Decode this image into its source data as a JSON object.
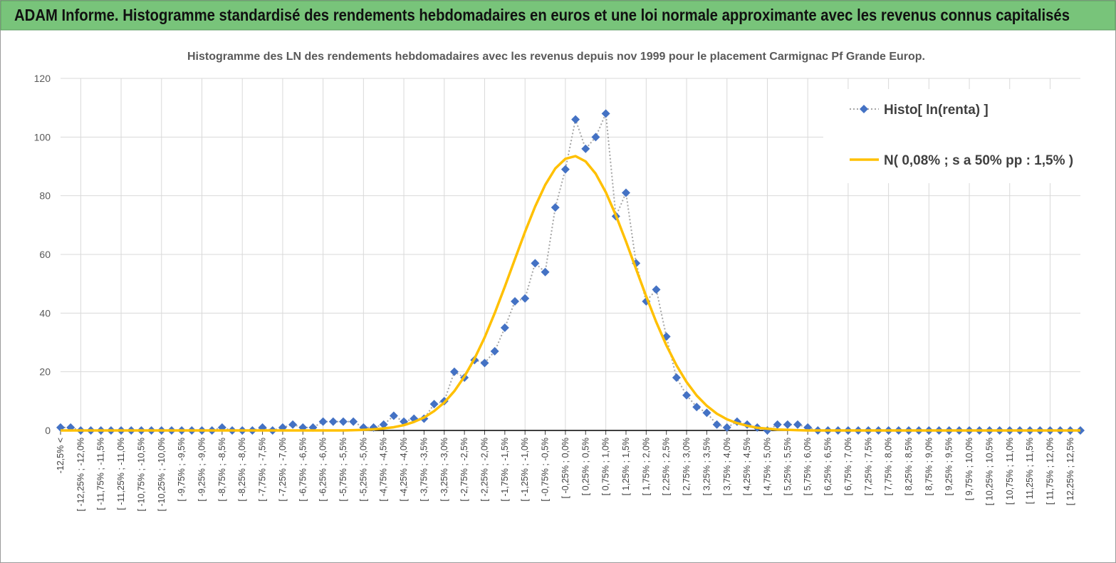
{
  "header": {
    "title": "ADAM Informe. Histogramme standardisé des rendements hebdomadaires en euros et une loi normale approximante avec les revenus connus capitalisés"
  },
  "chart_data": {
    "type": "line",
    "title": "Histogramme des LN des rendements hebdomadaires avec les revenus depuis nov 1999 pour le placement Carmignac Pf Grande Europ.",
    "categories": [
      "-12,5% <",
      null,
      "[ -12,25% ; -12,0%",
      null,
      "[ -11,75% ; -11,5%",
      null,
      "[ -11,25% ; -11,0%",
      null,
      "[ -10,75% ; -10,5%",
      null,
      "[ -10,25% ; -10,0%",
      null,
      "[ -9,75% ; -9,5%",
      null,
      "[ -9,25% ; -9,0%",
      null,
      "[ -8,75% ; -8,5%",
      null,
      "[ -8,25% ; -8,0%",
      null,
      "[ -7,75% ; -7,5%",
      null,
      "[ -7,25% ; -7,0%",
      null,
      "[ -6,75% ; -6,5%",
      null,
      "[ -6,25% ; -6,0%",
      null,
      "[ -5,75% ; -5,5%",
      null,
      "[ -5,25% ; -5,0%",
      null,
      "[ -4,75% ; -4,5%",
      null,
      "[ -4,25% ; -4,0%",
      null,
      "[ -3,75% ; -3,5%",
      null,
      "[ -3,25% ; -3,0%",
      null,
      "[ -2,75% ; -2,5%",
      null,
      "[ -2,25% ; -2,0%",
      null,
      "[ -1,75% ; -1,5%",
      null,
      "[ -1,25% ; -1,0%",
      null,
      "[ -0,75% ; -0,5%",
      null,
      "[ -0,25% ; 0,0%",
      null,
      "[ 0,25% ; 0,5%",
      null,
      "[ 0,75% ; 1,0%",
      null,
      "[ 1,25% ; 1,5%",
      null,
      "[ 1,75% ; 2,0%",
      null,
      "[ 2,25% ; 2,5%",
      null,
      "[ 2,75% ; 3,0%",
      null,
      "[ 3,25% ; 3,5%",
      null,
      "[ 3,75% ; 4,0%",
      null,
      "[ 4,25% ; 4,5%",
      null,
      "[ 4,75% ; 5,0%",
      null,
      "[ 5,25% ; 5,5%",
      null,
      "[ 5,75% ; 6,0%",
      null,
      "[ 6,25% ; 6,5%",
      null,
      "[ 6,75% ; 7,0%",
      null,
      "[ 7,25% ; 7,5%",
      null,
      "[ 7,75% ; 8,0%",
      null,
      "[ 8,25% ; 8,5%",
      null,
      "[ 8,75% ; 9,0%",
      null,
      "[ 9,25% ; 9,5%",
      null,
      "[ 9,75% ; 10,0%",
      null,
      "[ 10,25% ; 10,5%",
      null,
      "[ 10,75% ; 11,0%",
      null,
      "[ 11,25% ; 11,5%",
      null,
      "[ 11,75% ; 12,0%",
      null,
      "[ 12,25% ; 12,5%",
      null
    ],
    "series": [
      {
        "name": "Histo[ ln(renta) ]",
        "color": "#4472c4",
        "line_color": "#a5a5a5",
        "line_style": "dotted",
        "marker": "diamond",
        "values": [
          1,
          1,
          0,
          0,
          0,
          0,
          0,
          0,
          0,
          0,
          0,
          0,
          0,
          0,
          0,
          0,
          1,
          0,
          0,
          0,
          1,
          0,
          1,
          2,
          1,
          1,
          3,
          3,
          3,
          3,
          1,
          1,
          2,
          5,
          3,
          4,
          4,
          9,
          10,
          20,
          18,
          24,
          23,
          27,
          35,
          44,
          45,
          57,
          54,
          76,
          89,
          106,
          96,
          100,
          108,
          73,
          81,
          57,
          44,
          48,
          32,
          18,
          12,
          8,
          6,
          2,
          1,
          3,
          2,
          1,
          0,
          2,
          2,
          2,
          1,
          0,
          0,
          0,
          0,
          0,
          0,
          0,
          0,
          0,
          0,
          0,
          0,
          0,
          0,
          0,
          0,
          0,
          0,
          0,
          0,
          0,
          0,
          0,
          0,
          0,
          0,
          0
        ]
      },
      {
        "name": "N( 0,08% ; s a 50% pp : 1,5% )",
        "color": "#ffc000",
        "line_style": "solid",
        "marker": "none",
        "values": [
          0,
          0,
          0,
          0,
          0,
          0,
          0,
          0,
          0,
          0,
          0,
          0,
          0,
          0,
          0,
          0,
          0,
          0,
          0,
          0,
          0,
          0,
          0,
          0,
          0,
          0,
          0,
          0,
          0,
          0.1,
          0.2,
          0.4,
          0.7,
          1.1,
          1.8,
          2.9,
          4.4,
          6.6,
          9.5,
          13.4,
          18.4,
          24.5,
          31.7,
          40,
          49,
          58.4,
          67.7,
          76.3,
          83.7,
          89.3,
          92.6,
          93.5,
          91.7,
          87.5,
          81.2,
          73.3,
          64.4,
          55,
          45.7,
          36.9,
          29,
          22.2,
          16.5,
          11.9,
          8.4,
          5.7,
          3.8,
          2.5,
          1.6,
          0.9,
          0.6,
          0.3,
          0.2,
          0.1,
          0,
          0,
          0,
          0,
          0,
          0,
          0,
          0,
          0,
          0,
          0,
          0,
          0,
          0,
          0,
          0,
          0,
          0,
          0,
          0,
          0,
          0,
          0,
          0,
          0,
          0,
          0,
          0
        ]
      }
    ],
    "ylim": [
      0,
      120
    ],
    "yticks": [
      0,
      20,
      40,
      60,
      80,
      100,
      120
    ],
    "grid": true,
    "legend": "top-right"
  }
}
